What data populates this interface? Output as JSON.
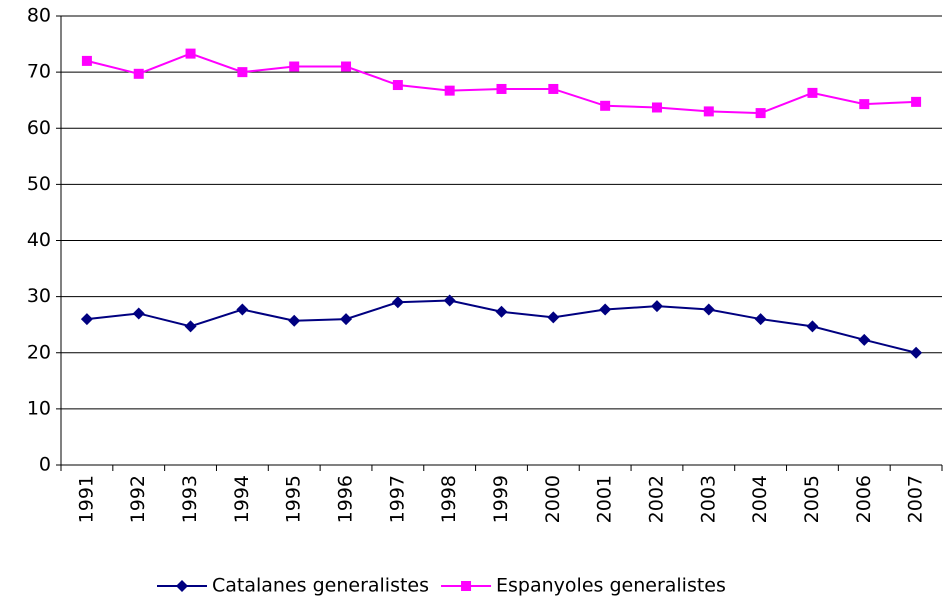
{
  "chart_data": {
    "type": "line",
    "categories": [
      "1991",
      "1992",
      "1993",
      "1994",
      "1995",
      "1996",
      "1997",
      "1998",
      "1999",
      "2000",
      "2001",
      "2002",
      "2003",
      "2004",
      "2005",
      "2006",
      "2007"
    ],
    "series": [
      {
        "name": "Catalanes generalistes",
        "color": "#000080",
        "marker": "diamond",
        "values": [
          26,
          27,
          24.7,
          27.7,
          25.7,
          26,
          29,
          29.3,
          27.3,
          26.3,
          27.7,
          28.3,
          27.7,
          26,
          24.7,
          22.3,
          20
        ]
      },
      {
        "name": "Espanyoles generalistes",
        "color": "#ff00ff",
        "marker": "square",
        "values": [
          72,
          69.7,
          73.3,
          70,
          71,
          71,
          67.7,
          66.7,
          67,
          67,
          64,
          63.7,
          63,
          62.7,
          66.3,
          64.3,
          64.7
        ]
      }
    ],
    "ylim": [
      0,
      80
    ],
    "yticks": [
      0,
      10,
      20,
      30,
      40,
      50,
      60,
      70,
      80
    ],
    "grid": true,
    "legend": "bottom"
  }
}
